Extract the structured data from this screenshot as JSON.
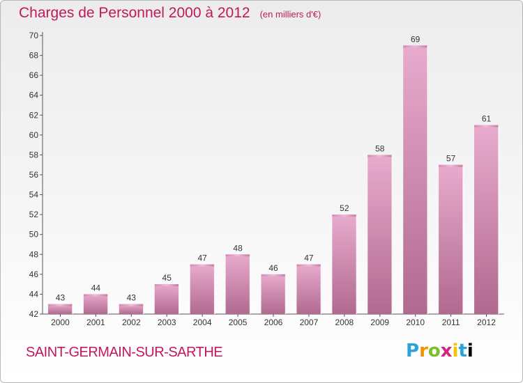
{
  "title": "Charges de Personnel 2000 à 2012",
  "subtitle": "(en milliers d'€)",
  "place": "SAINT-GERMAIN-SUR-SARTHE",
  "logo": [
    "P",
    "r",
    "o",
    "x",
    "i",
    "t",
    "i"
  ],
  "colors": {
    "title": "#c2185b",
    "bar_light": "#e6a7cb",
    "bar_dark": "#b0698f",
    "axis": "#555555"
  },
  "chart_data": {
    "type": "bar",
    "categories": [
      "2000",
      "2001",
      "2002",
      "2003",
      "2004",
      "2005",
      "2006",
      "2007",
      "2008",
      "2009",
      "2010",
      "2011",
      "2012"
    ],
    "values": [
      43,
      44,
      43,
      45,
      47,
      48,
      46,
      47,
      52,
      58,
      69,
      57,
      61
    ],
    "ylim": [
      42,
      70
    ],
    "yticks": [
      42,
      44,
      46,
      48,
      50,
      52,
      54,
      56,
      58,
      60,
      62,
      64,
      66,
      68,
      70
    ],
    "grid": false,
    "legend": "none"
  }
}
